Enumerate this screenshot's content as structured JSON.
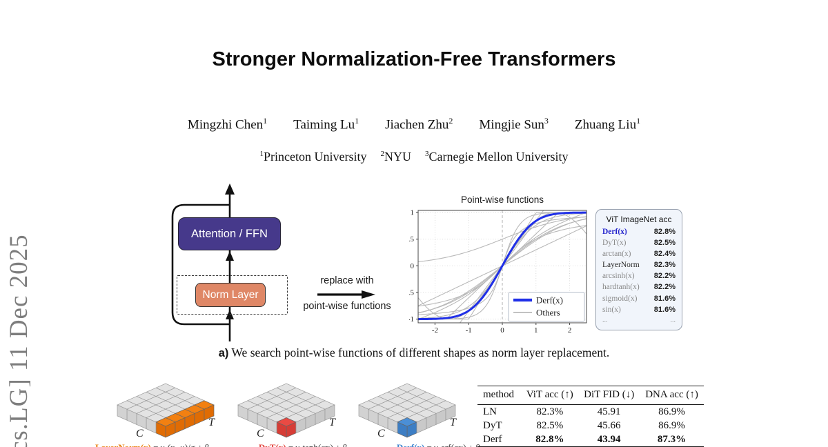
{
  "arxiv_stamp": "cs.LG] 11 Dec 2025",
  "title": "Stronger Normalization-Free Transformers",
  "authors": [
    {
      "name": "Mingzhi Chen",
      "sup": "1"
    },
    {
      "name": "Taiming Lu",
      "sup": "1"
    },
    {
      "name": "Jiachen Zhu",
      "sup": "2"
    },
    {
      "name": "Mingjie Sun",
      "sup": "3"
    },
    {
      "name": "Zhuang Liu",
      "sup": "1"
    }
  ],
  "affiliations": [
    {
      "sup": "1",
      "name": "Princeton University"
    },
    {
      "sup": "2",
      "name": "NYU"
    },
    {
      "sup": "3",
      "name": "Carnegie Mellon University"
    }
  ],
  "diagram": {
    "attention_label": "Attention / FFN",
    "norm_label": "Norm Layer",
    "attention_color": "#46398b",
    "norm_color": "#df8766"
  },
  "replace_arrow": {
    "top": "replace with",
    "bottom": "point-wise functions"
  },
  "chart_data": {
    "type": "line",
    "title": "Point-wise functions",
    "xlim": [
      -2.5,
      2.5
    ],
    "ylim": [
      -1.07,
      1.04
    ],
    "xticks": [
      -2,
      -1,
      0,
      1,
      2
    ],
    "yticks": [
      -1,
      -0.5,
      0,
      0.5,
      1
    ],
    "grid": true,
    "legend_position": "lower right",
    "highlight_series": {
      "name": "Derf(x)",
      "fn": "erf",
      "k": 1,
      "color": "#2030e8",
      "width": 3,
      "sample_points": {
        "x": [
          -2,
          -1,
          0,
          1,
          2
        ],
        "y": [
          -0.995,
          -0.843,
          0,
          0.843,
          0.995
        ]
      }
    },
    "other_series": [
      {
        "name": "DyT(x)",
        "fn": "tanh",
        "k": 1
      },
      {
        "name": "tanh(2x)",
        "fn": "tanh",
        "k": 2
      },
      {
        "name": "tanh(0.55x)",
        "fn": "tanh",
        "k": 0.55
      },
      {
        "name": "arctan(x)",
        "fn": "atan",
        "k": 1
      },
      {
        "name": "arctan(3x)",
        "fn": "atan",
        "k": 3
      },
      {
        "name": "sigmoid(x)",
        "fn": "sigmoid",
        "k": 1
      },
      {
        "name": "hardtanh(x)",
        "fn": "hardtanh",
        "k": 1
      },
      {
        "name": "hardtanh(0.6x)",
        "fn": "hardtanh",
        "k": 0.6
      },
      {
        "name": "sin(x)",
        "fn": "sin",
        "k": 1
      },
      {
        "name": "arcsinh(x)",
        "fn": "asinh",
        "k": 1
      },
      {
        "name": "0.3x",
        "fn": "linear",
        "k": 0.3
      },
      {
        "name": "0.85x",
        "fn": "linear",
        "k": 0.85
      },
      {
        "name": "erf(0.45x)",
        "fn": "erf",
        "k": 0.45
      }
    ],
    "others_color": "#b9b9b9",
    "legend": [
      {
        "label": "Derf(x)",
        "color": "#2030e8",
        "width": 3
      },
      {
        "label": "Others",
        "color": "#b9b9b9",
        "width": 1.2
      }
    ]
  },
  "ranking_panel": {
    "header": "ViT ImageNet acc",
    "rows": [
      {
        "name": "Derf(x)",
        "value": "82.8%",
        "style": "highlight"
      },
      {
        "name": "DyT(x)",
        "value": "82.5%",
        "style": "normal"
      },
      {
        "name": "arctan(x)",
        "value": "82.4%",
        "style": "normal"
      },
      {
        "name": "LayerNorm",
        "value": "82.3%",
        "style": "dark"
      },
      {
        "name": "arcsinh(x)",
        "value": "82.2%",
        "style": "normal"
      },
      {
        "name": "hardtanh(x)",
        "value": "82.2%",
        "style": "normal"
      },
      {
        "name": "sigmoid(x)",
        "value": "81.6%",
        "style": "normal"
      },
      {
        "name": "sin(x)",
        "value": "81.6%",
        "style": "normal"
      },
      {
        "name": "...",
        "value": "...",
        "style": "dots"
      }
    ]
  },
  "caption_a": {
    "label": "a)",
    "text": " We search point-wise functions of different shapes as norm layer replacement."
  },
  "cubes": [
    {
      "axis_left": "C",
      "axis_right": "T",
      "highlight": "strip-right-edge",
      "top_color": "#f28011",
      "side_color": "#e06c04"
    },
    {
      "axis_left": "C",
      "axis_right": "T",
      "highlight": "front-corner-cell",
      "top_color": "#ea4a43",
      "side_color": "#d63d36"
    },
    {
      "axis_left": "C",
      "axis_right": "T",
      "highlight": "front-corner-cell",
      "top_color": "#4b8fd6",
      "side_color": "#3d7ec4"
    }
  ],
  "cube_base_colors": {
    "top": "#e3e3e3",
    "left": "#d2d2d2",
    "right": "#c9c9c9",
    "stroke": "#9b9b9b"
  },
  "formulas_partial": [
    {
      "name": "LayerNorm(x)",
      "name_color": "#e8820e",
      "rest": " = γ·(x−μ)/σ + β"
    },
    {
      "name": "DyT(x)",
      "name_color": "#e24840",
      "rest": " = γ·tanh(αx) + β"
    },
    {
      "name": "Derf(x)",
      "name_color": "#3f86cf",
      "rest": " = γ·erf(αx) + β"
    }
  ],
  "results_table": {
    "headers": [
      "method",
      "ViT acc (↑)",
      "DiT FID (↓)",
      "DNA acc (↑)"
    ],
    "rows": [
      {
        "method": "LN",
        "values": [
          "82.3%",
          "45.91",
          "86.9%"
        ],
        "bold": false
      },
      {
        "method": "DyT",
        "values": [
          "82.5%",
          "45.66",
          "86.9%"
        ],
        "bold": false
      },
      {
        "method": "Derf",
        "values": [
          "82.8%",
          "43.94",
          "87.3%"
        ],
        "bold": true
      }
    ]
  }
}
